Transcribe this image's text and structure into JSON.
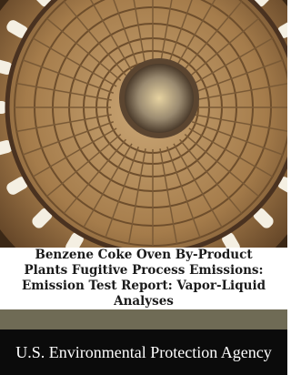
{
  "cover": {
    "title": "Benzene Coke Oven By-Product Plants Fugitive Process Emissions: Emission Test Report: Vapor-Liquid Analyses",
    "author": "U.S. Environmental Protection Agency"
  }
}
